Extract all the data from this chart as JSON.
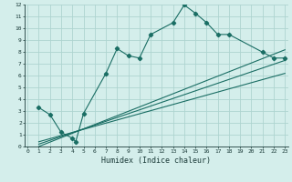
{
  "xlabel": "Humidex (Indice chaleur)",
  "bg_color": "#d4eeeb",
  "grid_color": "#aed4d0",
  "line_color": "#1a6e64",
  "curve1_x": [
    1,
    2,
    3,
    4,
    4.3,
    5,
    7,
    8,
    9,
    10,
    11,
    13,
    14,
    15,
    16,
    17,
    18,
    21,
    22,
    23
  ],
  "curve1_y": [
    3.3,
    2.7,
    1.2,
    0.7,
    0.4,
    2.8,
    6.2,
    8.3,
    7.7,
    7.5,
    9.5,
    10.5,
    12.0,
    11.3,
    10.5,
    9.5,
    9.5,
    8.0,
    7.5,
    7.5
  ],
  "line2_x": [
    1,
    23
  ],
  "line2_y": [
    0.2,
    7.3
  ],
  "line3_x": [
    1,
    23
  ],
  "line3_y": [
    0.4,
    6.2
  ],
  "line4_x": [
    1,
    23
  ],
  "line4_y": [
    0.0,
    8.2
  ],
  "xlim": [
    -0.3,
    23.3
  ],
  "ylim": [
    0,
    12
  ],
  "xticks": [
    0,
    1,
    2,
    3,
    4,
    5,
    6,
    7,
    8,
    9,
    10,
    11,
    12,
    13,
    14,
    15,
    16,
    17,
    18,
    19,
    20,
    21,
    22,
    23
  ],
  "yticks": [
    0,
    1,
    2,
    3,
    4,
    5,
    6,
    7,
    8,
    9,
    10,
    11,
    12
  ],
  "marker": "D",
  "markersize": 2.2,
  "linewidth": 0.8,
  "tick_fontsize": 4.5,
  "xlabel_fontsize": 6.0
}
